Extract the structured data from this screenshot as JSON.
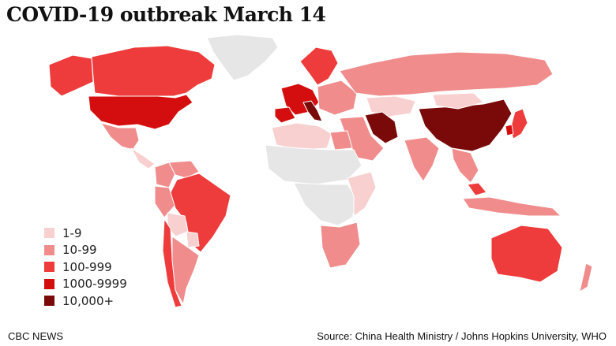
{
  "title": "COVID-19 outbreak March 14",
  "legend": [
    {
      "label": "1-9",
      "color": "#f8d0d0"
    },
    {
      "label": "10-99",
      "color": "#f08c8c"
    },
    {
      "label": "100-999",
      "color": "#ee3b3b"
    },
    {
      "label": "1000-9999",
      "color": "#d40e0e"
    },
    {
      "label": "10,000+",
      "color": "#7a0a0a"
    }
  ],
  "no_data_color": "#e6e6e6",
  "regions": [
    {
      "name": "Greenland",
      "level": 0
    },
    {
      "name": "Canada",
      "level": 3
    },
    {
      "name": "Alaska",
      "level": 3
    },
    {
      "name": "United States",
      "level": 4
    },
    {
      "name": "Mexico",
      "level": 2
    },
    {
      "name": "Central America",
      "level": 1
    },
    {
      "name": "Colombia",
      "level": 2
    },
    {
      "name": "Venezuela",
      "level": 2
    },
    {
      "name": "Peru",
      "level": 2
    },
    {
      "name": "Brazil",
      "level": 3
    },
    {
      "name": "Bolivia",
      "level": 1
    },
    {
      "name": "Paraguay",
      "level": 1
    },
    {
      "name": "Chile",
      "level": 3
    },
    {
      "name": "Argentina",
      "level": 2
    },
    {
      "name": "Western Europe",
      "level": 4
    },
    {
      "name": "Italy",
      "level": 5
    },
    {
      "name": "Spain",
      "level": 4
    },
    {
      "name": "Eastern Europe",
      "level": 2
    },
    {
      "name": "Scandinavia",
      "level": 3
    },
    {
      "name": "Russia",
      "level": 2
    },
    {
      "name": "Kazakhstan",
      "level": 1
    },
    {
      "name": "Middle East",
      "level": 2
    },
    {
      "name": "Iran",
      "level": 5
    },
    {
      "name": "India",
      "level": 2
    },
    {
      "name": "China",
      "level": 5
    },
    {
      "name": "Mongolia",
      "level": 1
    },
    {
      "name": "Japan",
      "level": 3
    },
    {
      "name": "South Korea",
      "level": 4
    },
    {
      "name": "Southeast Asia",
      "level": 2
    },
    {
      "name": "Malaysia",
      "level": 3
    },
    {
      "name": "Indonesia",
      "level": 2
    },
    {
      "name": "Australia",
      "level": 3
    },
    {
      "name": "New Zealand",
      "level": 2
    },
    {
      "name": "North Africa",
      "level": 1
    },
    {
      "name": "Egypt",
      "level": 2
    },
    {
      "name": "Sahara",
      "level": 0
    },
    {
      "name": "Central Africa",
      "level": 0
    },
    {
      "name": "East Africa",
      "level": 1
    },
    {
      "name": "South Africa",
      "level": 2
    }
  ],
  "footer": {
    "left": "CBC NEWS",
    "right": "Source: China Health Ministry / Johns Hopkins University, WHO"
  }
}
